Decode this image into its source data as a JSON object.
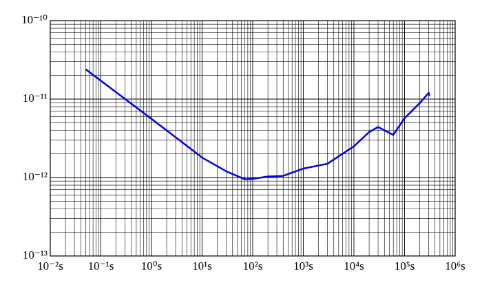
{
  "chart_data": {
    "type": "line",
    "log_x": true,
    "log_y": true,
    "grid": true,
    "minor_grid": true,
    "color": "#0000dd",
    "x": [
      0.05,
      1,
      10,
      30,
      70,
      100,
      200,
      400,
      1000,
      3000,
      10000,
      20000,
      30000,
      60000,
      100000,
      200000,
      300000,
      310000
    ],
    "values": [
      2.4e-11,
      5.6e-12,
      1.8e-12,
      1.2e-12,
      9.5e-13,
      9.6e-13,
      1.03e-12,
      1.05e-12,
      1.3e-12,
      1.5e-12,
      2.5e-12,
      3.8e-12,
      4.4e-12,
      3.5e-12,
      5.7e-12,
      8.9e-12,
      1.2e-11,
      1.1e-11
    ],
    "xlim": [
      0.01,
      1000000
    ],
    "ylim": [
      1e-13,
      1e-10
    ],
    "xticks": [
      {
        "value": 0.01,
        "label": "10⁻²s"
      },
      {
        "value": 0.1,
        "label": "10⁻¹s"
      },
      {
        "value": 1,
        "label": "10⁰s"
      },
      {
        "value": 10,
        "label": "10¹s"
      },
      {
        "value": 100,
        "label": "10²s"
      },
      {
        "value": 1000,
        "label": "10³s"
      },
      {
        "value": 10000,
        "label": "10⁴s"
      },
      {
        "value": 100000,
        "label": "10⁵s"
      },
      {
        "value": 1000000,
        "label": "10⁶s"
      }
    ],
    "yticks": [
      {
        "value": 1e-13,
        "label": "10⁻¹³"
      },
      {
        "value": 1e-12,
        "label": "10⁻¹²"
      },
      {
        "value": 1e-11,
        "label": "10⁻¹¹"
      },
      {
        "value": 1e-10,
        "label": "10⁻¹⁰"
      }
    ]
  }
}
